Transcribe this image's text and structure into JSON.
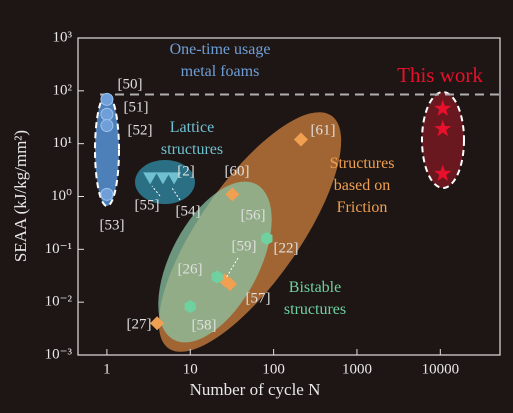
{
  "chart_data": {
    "type": "scatter",
    "x_label": "Number of cycle N",
    "y_label": "SEAA (kJ/kg/mm²)",
    "log_x": true,
    "log_y": true,
    "xlim": [
      0.45,
      52000
    ],
    "ylim": [
      0.001,
      1000
    ],
    "xticks": [
      1,
      10,
      100,
      1000,
      10000
    ],
    "yticks": [
      {
        "value": 0.001,
        "label": "10⁻³"
      },
      {
        "value": 0.01,
        "label": "10⁻²"
      },
      {
        "value": 0.1,
        "label": "10⁻¹"
      },
      {
        "value": 1,
        "label": "10⁰"
      },
      {
        "value": 10,
        "label": "10¹"
      },
      {
        "value": 100,
        "label": "10²"
      },
      {
        "value": 1000,
        "label": "10³"
      }
    ],
    "reference_line": 85,
    "series": [
      {
        "name": "One-time usage\nmetal foams",
        "color": "#6f9fd8",
        "marker": "circle",
        "x": [
          1,
          1,
          1,
          1
        ],
        "values": [
          69,
          36,
          22,
          1.1
        ]
      },
      {
        "name": "Lattice\nstructures",
        "color": "#6fc0d0",
        "marker": "triangle",
        "x": [
          3.3,
          4.7,
          6.4
        ],
        "values": [
          2.2,
          2.2,
          2.2
        ]
      },
      {
        "name": "Structures\nbased on\nFriction",
        "color": "#f0a050",
        "marker": "diamond",
        "x": [
          32,
          213,
          4,
          26,
          30
        ],
        "values": [
          1.1,
          12,
          0.004,
          0.026,
          0.022
        ]
      },
      {
        "name": "Bistable\nstructures",
        "color": "#6fd0a0",
        "marker": "hexagon",
        "x": [
          83,
          21,
          10
        ],
        "values": [
          0.16,
          0.03,
          0.0083
        ]
      },
      {
        "name": "This work",
        "color": "#e8102a",
        "marker": "star",
        "x": [
          10700,
          10700,
          10700
        ],
        "values": [
          46,
          19,
          2.7
        ]
      }
    ],
    "annotations": [
      "[50]",
      "[51]",
      "[52]",
      "[53]",
      "[2]",
      "[55]",
      "[54]",
      "[60]",
      "[61]",
      "[56]",
      "[22]",
      "[59]",
      "[26]",
      "[57]",
      "[27]",
      "[58]"
    ]
  }
}
